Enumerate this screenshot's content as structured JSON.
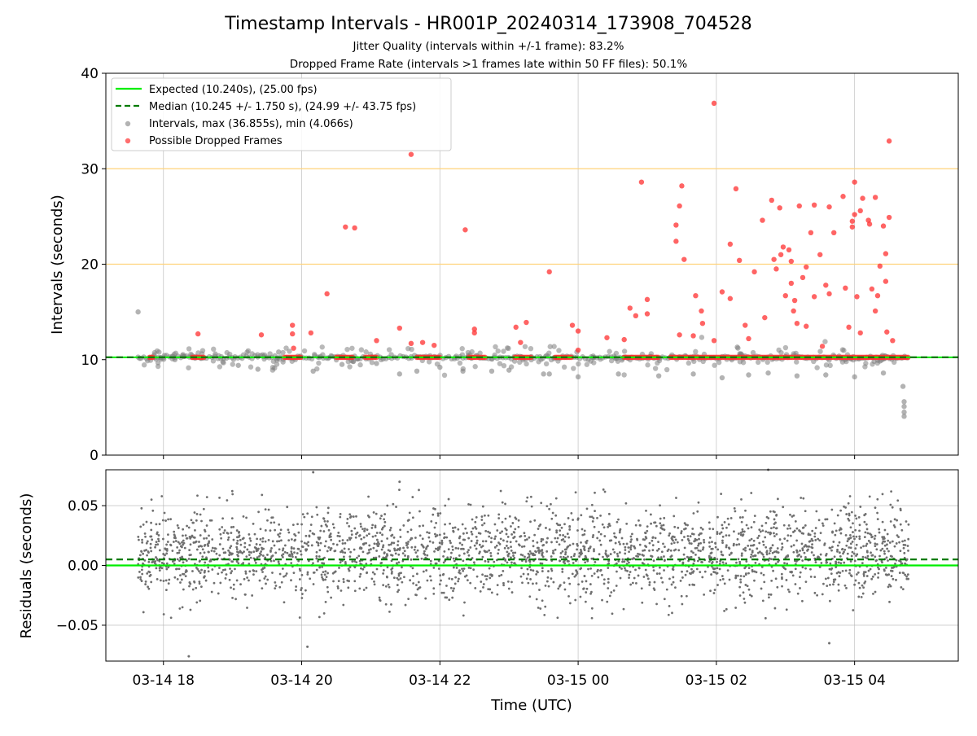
{
  "figure": {
    "title": "Timestamp Intervals - HR001P_20240314_173908_704528",
    "subtitle1": "Jitter Quality (intervals within +/-1 frame): 83.2%",
    "subtitle2": "Dropped Frame Rate (intervals >1 frames late within 50 FF files): 50.1%"
  },
  "chart_data": [
    {
      "type": "scatter",
      "panel": "intervals",
      "xlabel": "",
      "ylabel": "Intervals (seconds)",
      "xlim": [
        "2024-03-14 17:10",
        "2024-03-15 05:30"
      ],
      "ylim": [
        0,
        40
      ],
      "yticks": [
        0,
        10,
        20,
        30,
        40
      ],
      "ytick_labels": [
        "0",
        "10",
        "20",
        "30",
        "40"
      ],
      "grid": true,
      "legend_position": "top-left",
      "reference_lines": [
        {
          "name": "Expected (10.240s), (25.00 fps)",
          "y": 10.24,
          "color": "#00ee00",
          "style": "solid"
        },
        {
          "name": "Median (10.245 +/- 1.750 s), (24.99 +/- 43.75 fps)",
          "y": 10.245,
          "color": "#007a00",
          "style": "dashed"
        }
      ],
      "horizontal_threshold_lines": [
        {
          "y": 20,
          "color": "#ffd27a"
        },
        {
          "y": 30,
          "color": "#ffd27a"
        }
      ],
      "series": [
        {
          "name": "Intervals, max (36.855s), min (4.066s)",
          "color": "#808080",
          "band": {
            "x_start": "2024-03-14 17:38",
            "x_end": "2024-03-15 04:47",
            "y": 10.24
          },
          "points": [
            {
              "x": "2024-03-14 17:38",
              "y": 15.0
            },
            {
              "x": "2024-03-14 17:52",
              "y": 10.5
            },
            {
              "x": "2024-03-14 18:10",
              "y": 10.0
            },
            {
              "x": "2024-03-14 18:45",
              "y": 10.6
            },
            {
              "x": "2024-03-14 19:05",
              "y": 9.4
            },
            {
              "x": "2024-03-14 19:22",
              "y": 9.0
            },
            {
              "x": "2024-03-14 19:40",
              "y": 10.8
            },
            {
              "x": "2024-03-14 20:10",
              "y": 8.8
            },
            {
              "x": "2024-03-14 20:35",
              "y": 9.5
            },
            {
              "x": "2024-03-14 21:05",
              "y": 9.6
            },
            {
              "x": "2024-03-14 21:25",
              "y": 8.5
            },
            {
              "x": "2024-03-14 21:40",
              "y": 8.8
            },
            {
              "x": "2024-03-14 22:00",
              "y": 9.2
            },
            {
              "x": "2024-03-14 22:20",
              "y": 8.8
            },
            {
              "x": "2024-03-14 22:45",
              "y": 8.8
            },
            {
              "x": "2024-03-14 23:00",
              "y": 8.9
            },
            {
              "x": "2024-03-14 23:30",
              "y": 8.5
            },
            {
              "x": "2024-03-14 23:35",
              "y": 8.5
            },
            {
              "x": "2024-03-15 00:00",
              "y": 8.2
            },
            {
              "x": "2024-03-15 00:35",
              "y": 8.5
            },
            {
              "x": "2024-03-15 01:10",
              "y": 8.3
            },
            {
              "x": "2024-03-15 01:40",
              "y": 8.5
            },
            {
              "x": "2024-03-15 02:05",
              "y": 8.1
            },
            {
              "x": "2024-03-15 02:28",
              "y": 8.4
            },
            {
              "x": "2024-03-15 02:45",
              "y": 8.6
            },
            {
              "x": "2024-03-15 03:10",
              "y": 8.3
            },
            {
              "x": "2024-03-15 03:35",
              "y": 8.4
            },
            {
              "x": "2024-03-15 04:00",
              "y": 8.2
            },
            {
              "x": "2024-03-15 04:25",
              "y": 8.6
            },
            {
              "x": "2024-03-15 04:42",
              "y": 7.2
            },
            {
              "x": "2024-03-15 04:43",
              "y": 5.6
            },
            {
              "x": "2024-03-15 04:43",
              "y": 5.1
            },
            {
              "x": "2024-03-15 04:43",
              "y": 4.5
            },
            {
              "x": "2024-03-15 04:43",
              "y": 4.066
            }
          ]
        },
        {
          "name": "Possible Dropped Frames",
          "color": "#ff3030",
          "clusters": [
            {
              "x_start": "2024-03-14 17:48",
              "x_end": "2024-03-14 17:52",
              "y": 10.24
            },
            {
              "x_start": "2024-03-14 18:25",
              "x_end": "2024-03-14 18:35",
              "y": 10.24
            },
            {
              "x_start": "2024-03-14 19:45",
              "x_end": "2024-03-14 20:00",
              "y": 10.24
            },
            {
              "x_start": "2024-03-14 20:30",
              "x_end": "2024-03-14 20:45",
              "y": 10.24
            },
            {
              "x_start": "2024-03-14 20:55",
              "x_end": "2024-03-14 21:05",
              "y": 10.24
            },
            {
              "x_start": "2024-03-14 21:40",
              "x_end": "2024-03-14 22:00",
              "y": 10.24
            },
            {
              "x_start": "2024-03-14 22:25",
              "x_end": "2024-03-14 22:40",
              "y": 10.24
            },
            {
              "x_start": "2024-03-14 23:05",
              "x_end": "2024-03-14 23:20",
              "y": 10.24
            },
            {
              "x_start": "2024-03-14 23:40",
              "x_end": "2024-03-14 23:55",
              "y": 10.24
            },
            {
              "x_start": "2024-03-15 00:40",
              "x_end": "2024-03-15 01:10",
              "y": 10.24
            },
            {
              "x_start": "2024-03-15 01:20",
              "x_end": "2024-03-15 04:47",
              "y": 10.24
            }
          ],
          "points": [
            {
              "x": "2024-03-14 18:30",
              "y": 12.7
            },
            {
              "x": "2024-03-14 19:25",
              "y": 12.6
            },
            {
              "x": "2024-03-14 19:52",
              "y": 13.6
            },
            {
              "x": "2024-03-14 19:52",
              "y": 12.7
            },
            {
              "x": "2024-03-14 19:53",
              "y": 11.2
            },
            {
              "x": "2024-03-14 20:08",
              "y": 12.8
            },
            {
              "x": "2024-03-14 20:22",
              "y": 16.9
            },
            {
              "x": "2024-03-14 20:38",
              "y": 23.9
            },
            {
              "x": "2024-03-14 20:46",
              "y": 23.8
            },
            {
              "x": "2024-03-14 21:05",
              "y": 12.0
            },
            {
              "x": "2024-03-14 21:25",
              "y": 13.3
            },
            {
              "x": "2024-03-14 21:35",
              "y": 31.5
            },
            {
              "x": "2024-03-14 21:35",
              "y": 11.7
            },
            {
              "x": "2024-03-14 21:45",
              "y": 11.8
            },
            {
              "x": "2024-03-14 21:55",
              "y": 11.5
            },
            {
              "x": "2024-03-14 22:22",
              "y": 23.6
            },
            {
              "x": "2024-03-14 22:30",
              "y": 13.2
            },
            {
              "x": "2024-03-14 22:30",
              "y": 12.8
            },
            {
              "x": "2024-03-14 23:06",
              "y": 13.4
            },
            {
              "x": "2024-03-14 23:10",
              "y": 11.8
            },
            {
              "x": "2024-03-14 23:15",
              "y": 13.9
            },
            {
              "x": "2024-03-14 23:35",
              "y": 19.2
            },
            {
              "x": "2024-03-14 23:55",
              "y": 13.6
            },
            {
              "x": "2024-03-15 00:00",
              "y": 13.0
            },
            {
              "x": "2024-03-15 00:00",
              "y": 11.0
            },
            {
              "x": "2024-03-15 00:25",
              "y": 12.3
            },
            {
              "x": "2024-03-15 00:40",
              "y": 12.1
            },
            {
              "x": "2024-03-15 00:45",
              "y": 15.4
            },
            {
              "x": "2024-03-15 00:50",
              "y": 14.6
            },
            {
              "x": "2024-03-15 00:55",
              "y": 28.6
            },
            {
              "x": "2024-03-15 01:00",
              "y": 16.3
            },
            {
              "x": "2024-03-15 01:00",
              "y": 14.8
            },
            {
              "x": "2024-03-15 01:25",
              "y": 24.1
            },
            {
              "x": "2024-03-15 01:25",
              "y": 22.4
            },
            {
              "x": "2024-03-15 01:28",
              "y": 26.1
            },
            {
              "x": "2024-03-15 01:30",
              "y": 28.2
            },
            {
              "x": "2024-03-15 01:32",
              "y": 20.5
            },
            {
              "x": "2024-03-15 01:28",
              "y": 12.6
            },
            {
              "x": "2024-03-15 01:40",
              "y": 12.5
            },
            {
              "x": "2024-03-15 01:42",
              "y": 16.7
            },
            {
              "x": "2024-03-15 01:47",
              "y": 15.1
            },
            {
              "x": "2024-03-15 01:48",
              "y": 13.8
            },
            {
              "x": "2024-03-15 01:58",
              "y": 12.0
            },
            {
              "x": "2024-03-15 01:58",
              "y": 36.855
            },
            {
              "x": "2024-03-15 02:05",
              "y": 17.1
            },
            {
              "x": "2024-03-15 02:12",
              "y": 22.1
            },
            {
              "x": "2024-03-15 02:12",
              "y": 16.4
            },
            {
              "x": "2024-03-15 02:17",
              "y": 27.9
            },
            {
              "x": "2024-03-15 02:20",
              "y": 20.4
            },
            {
              "x": "2024-03-15 02:25",
              "y": 13.6
            },
            {
              "x": "2024-03-15 02:28",
              "y": 12.2
            },
            {
              "x": "2024-03-15 02:33",
              "y": 19.2
            },
            {
              "x": "2024-03-15 02:40",
              "y": 24.6
            },
            {
              "x": "2024-03-15 02:42",
              "y": 14.4
            },
            {
              "x": "2024-03-15 02:48",
              "y": 26.7
            },
            {
              "x": "2024-03-15 02:50",
              "y": 20.5
            },
            {
              "x": "2024-03-15 02:52",
              "y": 19.5
            },
            {
              "x": "2024-03-15 02:55",
              "y": 25.9
            },
            {
              "x": "2024-03-15 02:56",
              "y": 21.0
            },
            {
              "x": "2024-03-15 02:58",
              "y": 21.8
            },
            {
              "x": "2024-03-15 03:00",
              "y": 16.7
            },
            {
              "x": "2024-03-15 03:03",
              "y": 21.5
            },
            {
              "x": "2024-03-15 03:05",
              "y": 20.3
            },
            {
              "x": "2024-03-15 03:05",
              "y": 18.0
            },
            {
              "x": "2024-03-15 03:07",
              "y": 15.1
            },
            {
              "x": "2024-03-15 03:08",
              "y": 16.2
            },
            {
              "x": "2024-03-15 03:10",
              "y": 13.8
            },
            {
              "x": "2024-03-15 03:12",
              "y": 26.1
            },
            {
              "x": "2024-03-15 03:15",
              "y": 18.6
            },
            {
              "x": "2024-03-15 03:18",
              "y": 19.7
            },
            {
              "x": "2024-03-15 03:18",
              "y": 13.5
            },
            {
              "x": "2024-03-15 03:22",
              "y": 23.3
            },
            {
              "x": "2024-03-15 03:25",
              "y": 26.2
            },
            {
              "x": "2024-03-15 03:25",
              "y": 16.6
            },
            {
              "x": "2024-03-15 03:30",
              "y": 21.0
            },
            {
              "x": "2024-03-15 03:32",
              "y": 11.4
            },
            {
              "x": "2024-03-15 03:35",
              "y": 17.8
            },
            {
              "x": "2024-03-15 03:38",
              "y": 26.0
            },
            {
              "x": "2024-03-15 03:38",
              "y": 16.9
            },
            {
              "x": "2024-03-15 03:42",
              "y": 23.3
            },
            {
              "x": "2024-03-15 03:50",
              "y": 27.1
            },
            {
              "x": "2024-03-15 03:52",
              "y": 17.5
            },
            {
              "x": "2024-03-15 03:55",
              "y": 13.4
            },
            {
              "x": "2024-03-15 03:58",
              "y": 24.5
            },
            {
              "x": "2024-03-15 03:58",
              "y": 23.9
            },
            {
              "x": "2024-03-15 04:00",
              "y": 25.2
            },
            {
              "x": "2024-03-15 04:00",
              "y": 28.6
            },
            {
              "x": "2024-03-15 04:02",
              "y": 16.6
            },
            {
              "x": "2024-03-15 04:05",
              "y": 25.6
            },
            {
              "x": "2024-03-15 04:07",
              "y": 26.9
            },
            {
              "x": "2024-03-15 04:05",
              "y": 12.8
            },
            {
              "x": "2024-03-15 04:12",
              "y": 24.6
            },
            {
              "x": "2024-03-15 04:13",
              "y": 24.2
            },
            {
              "x": "2024-03-15 04:15",
              "y": 17.4
            },
            {
              "x": "2024-03-15 04:18",
              "y": 27.0
            },
            {
              "x": "2024-03-15 04:18",
              "y": 15.1
            },
            {
              "x": "2024-03-15 04:20",
              "y": 16.7
            },
            {
              "x": "2024-03-15 04:22",
              "y": 19.8
            },
            {
              "x": "2024-03-15 04:25",
              "y": 24.0
            },
            {
              "x": "2024-03-15 04:27",
              "y": 21.1
            },
            {
              "x": "2024-03-15 04:27",
              "y": 18.2
            },
            {
              "x": "2024-03-15 04:28",
              "y": 12.9
            },
            {
              "x": "2024-03-15 04:30",
              "y": 24.9
            },
            {
              "x": "2024-03-15 04:30",
              "y": 32.9
            },
            {
              "x": "2024-03-15 04:33",
              "y": 12.0
            }
          ]
        }
      ]
    },
    {
      "type": "scatter",
      "panel": "residuals",
      "xlabel": "Time (UTC)",
      "ylabel": "Residuals (seconds)",
      "xlim": [
        "2024-03-14 17:10",
        "2024-03-15 05:30"
      ],
      "ylim": [
        -0.08,
        0.08
      ],
      "yticks": [
        -0.05,
        0.0,
        0.05
      ],
      "ytick_labels": [
        "−0.05",
        "0.00",
        "0.05"
      ],
      "xticks": [
        "2024-03-14 18:00",
        "2024-03-14 20:00",
        "2024-03-14 22:00",
        "2024-03-15 00:00",
        "2024-03-15 02:00",
        "2024-03-15 04:00"
      ],
      "xtick_labels": [
        "03-14 18",
        "03-14 20",
        "03-14 22",
        "03-15 00",
        "03-15 02",
        "03-15 04"
      ],
      "grid": true,
      "reference_lines": [
        {
          "y": 0.0,
          "color": "#00ee00",
          "style": "solid"
        },
        {
          "y": 0.005,
          "color": "#007a00",
          "style": "dashed"
        }
      ],
      "series": [
        {
          "name": "",
          "color": "#6f6f6f",
          "distribution": {
            "x_start": "2024-03-14 17:38",
            "x_end": "2024-03-15 04:47",
            "center": 0.01,
            "typical_range": [
              -0.045,
              0.065
            ]
          },
          "outliers": [
            {
              "x": "2024-03-14 18:22",
              "y": -0.076
            },
            {
              "x": "2024-03-14 20:10",
              "y": 0.078
            },
            {
              "x": "2024-03-14 20:05",
              "y": -0.068
            },
            {
              "x": "2024-03-15 02:45",
              "y": 0.08
            },
            {
              "x": "2024-03-15 03:38",
              "y": -0.065
            },
            {
              "x": "2024-03-14 21:25",
              "y": 0.07
            }
          ]
        }
      ]
    }
  ]
}
